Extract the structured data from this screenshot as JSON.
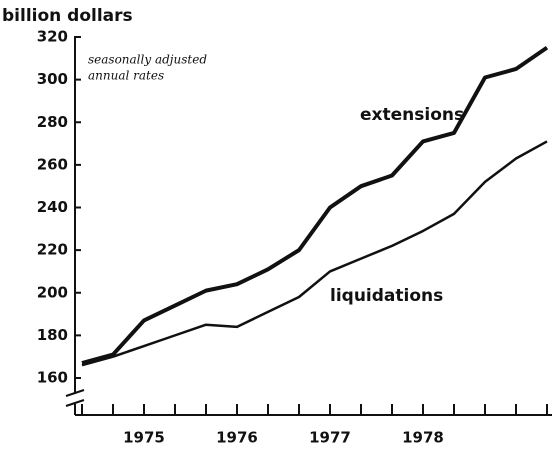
{
  "chart_data": {
    "type": "line",
    "ylabel": "billion dollars",
    "note": [
      "seasonally adjusted",
      "annual rates"
    ],
    "categories": [
      null,
      null,
      "1975",
      null,
      null,
      "1976",
      null,
      null,
      "1977",
      null,
      null,
      "1978",
      null,
      null,
      null,
      null
    ],
    "series": [
      {
        "name": "extensions",
        "color": "#111111",
        "values": [
          167,
          171,
          187,
          194,
          201,
          204,
          211,
          220,
          240,
          250,
          255,
          271,
          275,
          301,
          305,
          315
        ]
      },
      {
        "name": "liquidations",
        "color": "#111111",
        "values": [
          166,
          170,
          175,
          180,
          185,
          184,
          191,
          198,
          210,
          216,
          222,
          229,
          237,
          252,
          263,
          271
        ]
      }
    ],
    "ylim": [
      160,
      320
    ],
    "yticks": [
      160,
      180,
      200,
      220,
      240,
      260,
      280,
      300,
      320
    ]
  }
}
